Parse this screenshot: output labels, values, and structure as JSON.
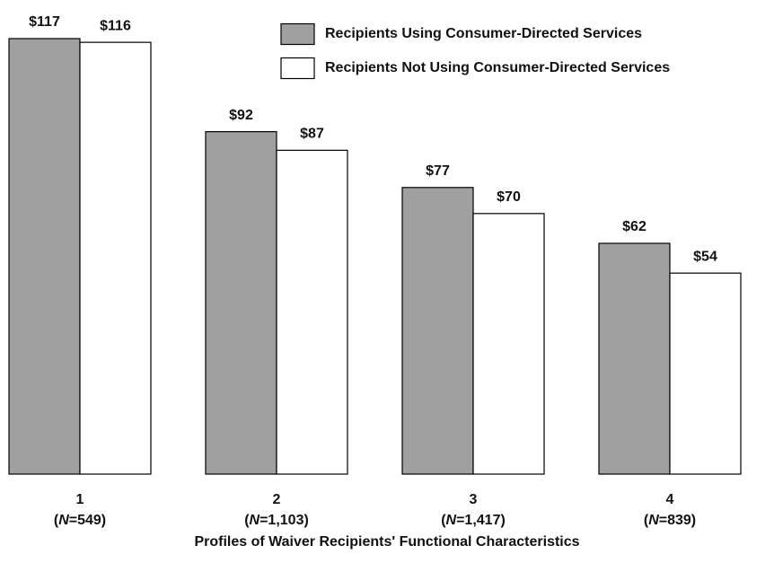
{
  "chart_data": {
    "type": "bar",
    "xlabel": "Profiles of Waiver Recipients' Functional Characteristics",
    "categories": [
      "1",
      "2",
      "3",
      "4"
    ],
    "category_sublabels": [
      "(N=549)",
      "(N=1,103)",
      "(N=1,417)",
      "(N=839)"
    ],
    "series": [
      {
        "name": "Recipients Using Consumer-Directed Services",
        "color": "#a0a0a0",
        "values": [
          117,
          92,
          77,
          62
        ],
        "value_labels": [
          "$117",
          "$92",
          "$77",
          "$62"
        ]
      },
      {
        "name": "Recipients Not Using Consumer-Directed Services",
        "color": "#ffffff",
        "values": [
          116,
          87,
          70,
          54
        ],
        "value_labels": [
          "$116",
          "$87",
          "$70",
          "$54"
        ]
      }
    ],
    "legend": "top-right"
  }
}
